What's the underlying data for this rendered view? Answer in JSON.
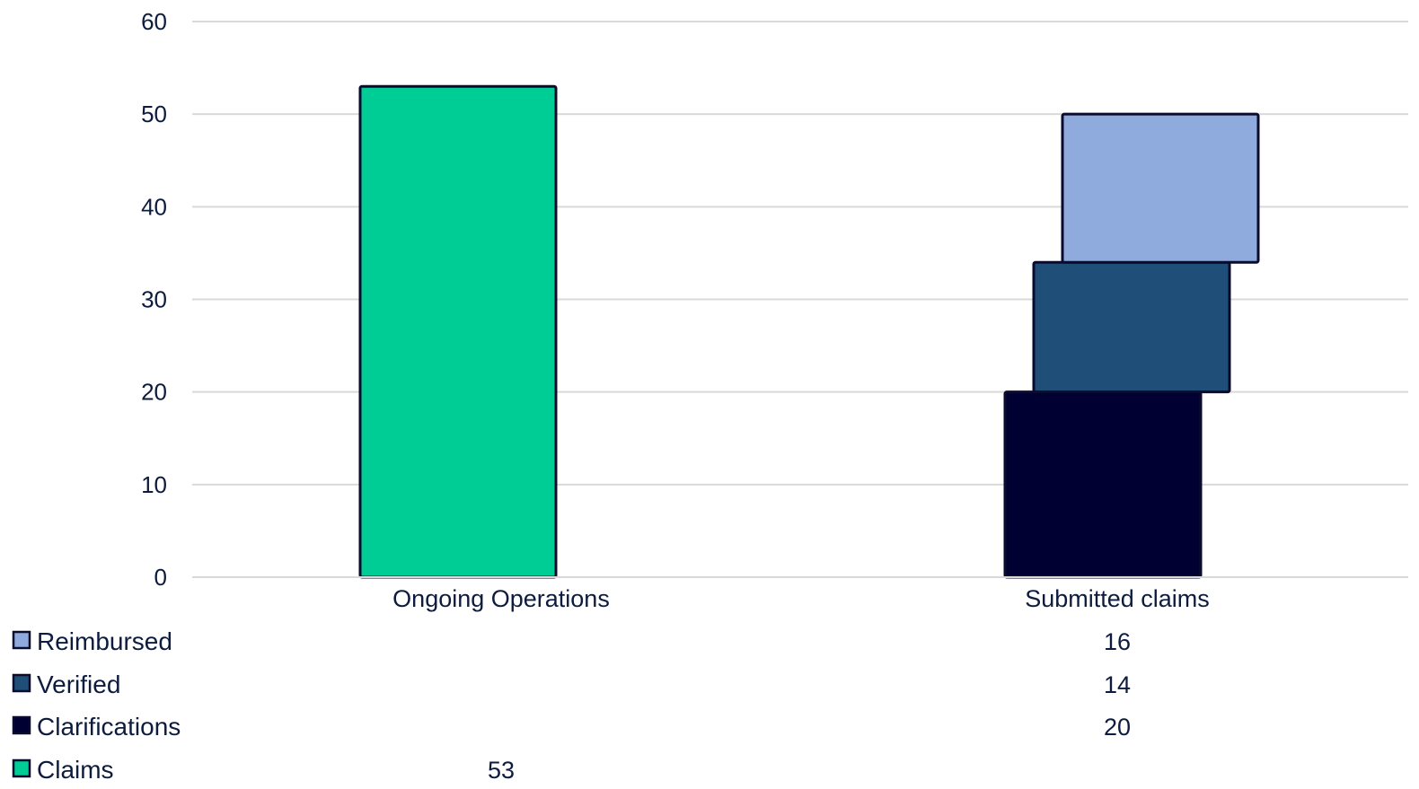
{
  "chart_data": {
    "type": "bar",
    "stacked": true,
    "categories": [
      "Ongoing Operations",
      "Submitted claims"
    ],
    "ylim": [
      0,
      60
    ],
    "yticks": [
      0,
      10,
      20,
      30,
      40,
      50,
      60
    ],
    "grid": true,
    "legend_placement": "bottom-left data table",
    "series": [
      {
        "name": "Clarifications",
        "color": "#000033",
        "values": [
          null,
          20
        ]
      },
      {
        "name": "Verified",
        "color": "#1f4e79",
        "values": [
          null,
          14
        ]
      },
      {
        "name": "Reimbursed",
        "color": "#8faadc",
        "values": [
          null,
          16
        ]
      },
      {
        "name": "Claims",
        "color": "#00cc96",
        "values": [
          53,
          null
        ]
      }
    ],
    "table_order": [
      "Reimbursed",
      "Verified",
      "Clarifications",
      "Claims"
    ]
  }
}
